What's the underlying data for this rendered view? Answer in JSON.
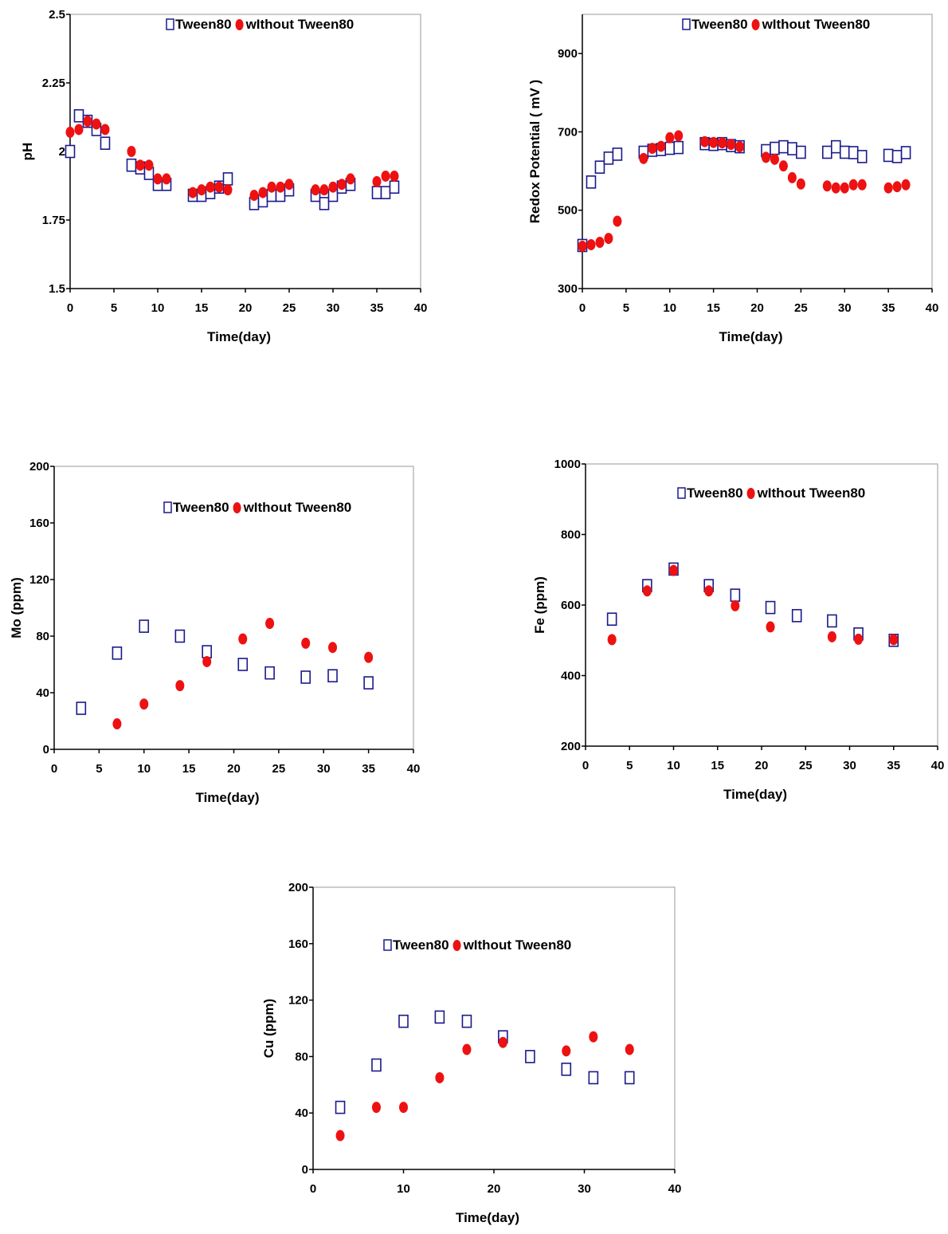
{
  "chart_data": [
    {
      "type": "scatter",
      "xlabel": "Time(day)",
      "ylabel": "pH",
      "xlim": [
        0,
        40
      ],
      "ylim": [
        1.5,
        2.5
      ],
      "xticks": [
        0,
        5,
        10,
        15,
        20,
        25,
        30,
        35,
        40
      ],
      "xtick_labels": [
        "0",
        "5",
        "10",
        "15",
        "20",
        "25",
        "30",
        "35",
        "40"
      ],
      "yticks": [
        1.5,
        1.75,
        2,
        2.25,
        2.5
      ],
      "ytick_labels": [
        "1.5",
        "1.75",
        "2",
        "2.25",
        "2.5"
      ],
      "grid": false,
      "legend": "top-right",
      "series": [
        {
          "name": "Tween80",
          "marker": "open-square",
          "color": "#1a1a8c",
          "x": [
            0,
            1,
            2,
            3,
            4,
            7,
            8,
            9,
            10,
            11,
            14,
            15,
            16,
            17,
            18,
            21,
            22,
            23,
            24,
            25,
            28,
            29,
            30,
            31,
            32,
            35,
            36,
            37
          ],
          "y": [
            2.0,
            2.13,
            2.11,
            2.08,
            2.03,
            1.95,
            1.94,
            1.92,
            1.88,
            1.88,
            1.84,
            1.84,
            1.85,
            1.87,
            1.9,
            1.81,
            1.82,
            1.84,
            1.84,
            1.86,
            1.84,
            1.81,
            1.84,
            1.87,
            1.88,
            1.85,
            1.85,
            1.87
          ]
        },
        {
          "name": "wIthout Tween80",
          "marker": "filled-circle",
          "color": "#ee1111",
          "x": [
            0,
            1,
            2,
            3,
            4,
            7,
            8,
            9,
            10,
            11,
            14,
            15,
            16,
            17,
            18,
            21,
            22,
            23,
            24,
            25,
            28,
            29,
            30,
            31,
            32,
            35,
            36,
            37
          ],
          "y": [
            2.07,
            2.08,
            2.11,
            2.1,
            2.08,
            2.0,
            1.95,
            1.95,
            1.9,
            1.9,
            1.85,
            1.86,
            1.87,
            1.87,
            1.86,
            1.84,
            1.85,
            1.87,
            1.87,
            1.88,
            1.86,
            1.86,
            1.87,
            1.88,
            1.9,
            1.89,
            1.91,
            1.91
          ]
        }
      ]
    },
    {
      "type": "scatter",
      "xlabel": "Time(day)",
      "ylabel": "Redox Potential ( mV )",
      "xlim": [
        0,
        40
      ],
      "ylim": [
        300,
        1000
      ],
      "xticks": [
        0,
        5,
        10,
        15,
        20,
        25,
        30,
        35,
        40
      ],
      "xtick_labels": [
        "0",
        "5",
        "10",
        "15",
        "20",
        "25",
        "30",
        "35",
        "40"
      ],
      "yticks": [
        300,
        500,
        700,
        900
      ],
      "ytick_labels": [
        "300",
        "500",
        "700",
        "900"
      ],
      "grid": false,
      "legend": "top-right",
      "series": [
        {
          "name": "Tween80",
          "marker": "open-square",
          "color": "#1a1a8c",
          "x": [
            0,
            1,
            2,
            3,
            4,
            7,
            8,
            9,
            10,
            11,
            14,
            15,
            16,
            17,
            18,
            21,
            22,
            23,
            24,
            25,
            28,
            29,
            30,
            31,
            32,
            35,
            36,
            37
          ],
          "y": [
            410,
            572,
            610,
            633,
            643,
            648,
            653,
            655,
            658,
            660,
            670,
            668,
            670,
            665,
            662,
            652,
            658,
            662,
            657,
            648,
            648,
            662,
            648,
            647,
            637,
            640,
            637,
            647
          ]
        },
        {
          "name": "wIthout Tween80",
          "marker": "filled-circle",
          "color": "#ee1111",
          "x": [
            0,
            1,
            2,
            3,
            4,
            7,
            8,
            9,
            10,
            11,
            14,
            15,
            16,
            17,
            18,
            21,
            22,
            23,
            24,
            25,
            28,
            29,
            30,
            31,
            32,
            35,
            36,
            37
          ],
          "y": [
            408,
            412,
            418,
            428,
            472,
            632,
            658,
            663,
            685,
            690,
            675,
            673,
            672,
            668,
            662,
            635,
            630,
            613,
            583,
            567,
            562,
            557,
            557,
            565,
            565,
            557,
            560,
            565
          ]
        }
      ]
    },
    {
      "type": "scatter",
      "xlabel": "Time(day)",
      "ylabel": "Mo (ppm)",
      "xlim": [
        0,
        40
      ],
      "ylim": [
        0,
        200
      ],
      "xticks": [
        0,
        5,
        10,
        15,
        20,
        25,
        30,
        35,
        40
      ],
      "xtick_labels": [
        "0",
        "5",
        "10",
        "15",
        "20",
        "25",
        "30",
        "35",
        "40"
      ],
      "yticks": [
        0,
        40,
        80,
        120,
        160,
        200
      ],
      "ytick_labels": [
        "0",
        "40",
        "80",
        "120",
        "160",
        "200"
      ],
      "grid": false,
      "legend": "top-right",
      "series": [
        {
          "name": "Tween80",
          "marker": "open-square",
          "color": "#1a1a8c",
          "x": [
            3,
            7,
            10,
            14,
            17,
            21,
            24,
            28,
            31,
            35
          ],
          "y": [
            29,
            68,
            87,
            80,
            69,
            60,
            54,
            51,
            52,
            47
          ]
        },
        {
          "name": "wIthout Tween80",
          "marker": "filled-circle",
          "color": "#ee1111",
          "x": [
            7,
            10,
            14,
            17,
            21,
            24,
            28,
            31,
            35
          ],
          "y": [
            18,
            32,
            45,
            62,
            78,
            89,
            75,
            72,
            65
          ]
        }
      ]
    },
    {
      "type": "scatter",
      "xlabel": "Time(day)",
      "ylabel": "Fe (ppm)",
      "xlim": [
        0,
        40
      ],
      "ylim": [
        200,
        1000
      ],
      "xticks": [
        0,
        5,
        10,
        15,
        20,
        25,
        30,
        35,
        40
      ],
      "xtick_labels": [
        "0",
        "5",
        "10",
        "15",
        "20",
        "25",
        "30",
        "35",
        "40"
      ],
      "yticks": [
        200,
        400,
        600,
        800,
        1000
      ],
      "ytick_labels": [
        "200",
        "400",
        "600",
        "800",
        "1000"
      ],
      "grid": false,
      "legend": "top-right",
      "series": [
        {
          "name": "Tween80",
          "marker": "open-square",
          "color": "#1a1a8c",
          "x": [
            3,
            7,
            10,
            14,
            17,
            21,
            24,
            28,
            31,
            35
          ],
          "y": [
            560,
            655,
            702,
            655,
            628,
            593,
            570,
            555,
            518,
            500
          ]
        },
        {
          "name": "wIthout Tween80",
          "marker": "filled-circle",
          "color": "#ee1111",
          "x": [
            3,
            7,
            10,
            14,
            17,
            21,
            28,
            31,
            35
          ],
          "y": [
            502,
            640,
            698,
            640,
            598,
            538,
            510,
            503,
            502
          ]
        }
      ]
    },
    {
      "type": "scatter",
      "xlabel": "Time(day)",
      "ylabel": "Cu (ppm)",
      "xlim": [
        0,
        40
      ],
      "ylim": [
        0,
        200
      ],
      "xticks": [
        0,
        10,
        20,
        30,
        40
      ],
      "xtick_labels": [
        "0",
        "10",
        "20",
        "30",
        "40"
      ],
      "yticks": [
        0,
        40,
        80,
        120,
        160,
        200
      ],
      "ytick_labels": [
        "0",
        "40",
        "80",
        "120",
        "160",
        "200"
      ],
      "grid": false,
      "legend": "top-right",
      "series": [
        {
          "name": "Tween80",
          "marker": "open-square",
          "color": "#1a1a8c",
          "x": [
            3,
            7,
            10,
            14,
            17,
            21,
            24,
            28,
            31,
            35
          ],
          "y": [
            44,
            74,
            105,
            108,
            105,
            94,
            80,
            71,
            65,
            65
          ]
        },
        {
          "name": "wIthout Tween80",
          "marker": "filled-circle",
          "color": "#ee1111",
          "x": [
            3,
            7,
            10,
            14,
            17,
            21,
            28,
            31,
            35
          ],
          "y": [
            24,
            44,
            44,
            65,
            85,
            90,
            84,
            94,
            85
          ]
        }
      ]
    }
  ]
}
